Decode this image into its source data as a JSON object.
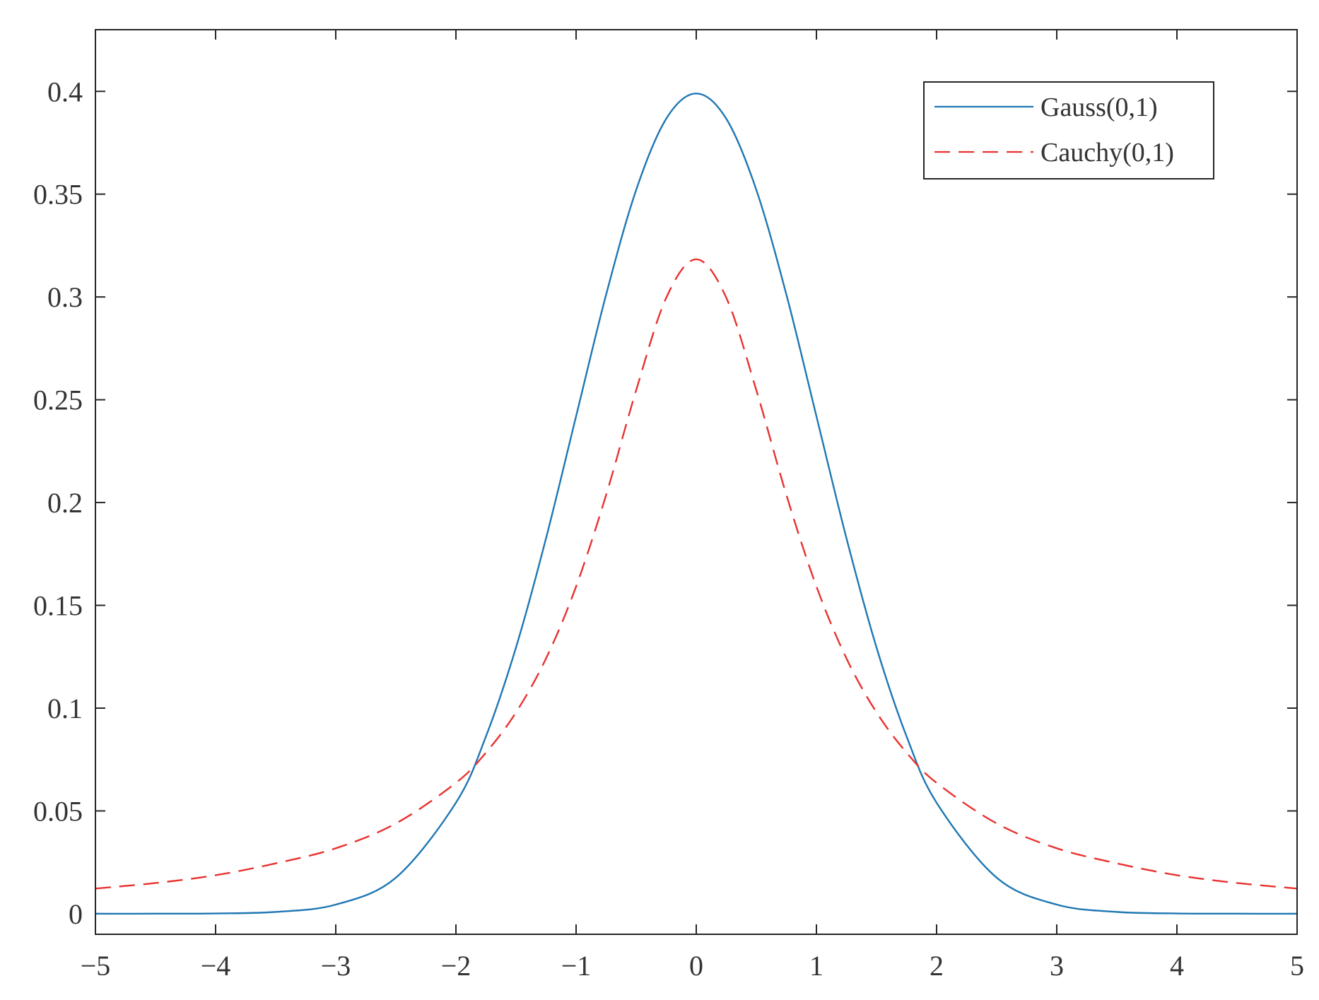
{
  "chart_data": {
    "type": "line",
    "title": "",
    "xlabel": "",
    "ylabel": "",
    "xlim": [
      -5,
      5
    ],
    "ylim": [
      -0.01,
      0.43
    ],
    "grid": false,
    "legend_position": "top-right",
    "x_ticks": [
      {
        "value": -5,
        "label": "−5"
      },
      {
        "value": -4,
        "label": "−4"
      },
      {
        "value": -3,
        "label": "−3"
      },
      {
        "value": -2,
        "label": "−2"
      },
      {
        "value": -1,
        "label": "−1"
      },
      {
        "value": 0,
        "label": "0"
      },
      {
        "value": 1,
        "label": "1"
      },
      {
        "value": 2,
        "label": "2"
      },
      {
        "value": 3,
        "label": "3"
      },
      {
        "value": 4,
        "label": "4"
      },
      {
        "value": 5,
        "label": "5"
      }
    ],
    "y_ticks": [
      {
        "value": 0,
        "label": "0"
      },
      {
        "value": 0.05,
        "label": "0.05"
      },
      {
        "value": 0.1,
        "label": "0.1"
      },
      {
        "value": 0.15,
        "label": "0.15"
      },
      {
        "value": 0.2,
        "label": "0.2"
      },
      {
        "value": 0.25,
        "label": "0.25"
      },
      {
        "value": 0.3,
        "label": "0.3"
      },
      {
        "value": 0.35,
        "label": "0.35"
      },
      {
        "value": 0.4,
        "label": "0.4"
      }
    ],
    "x": [
      -5,
      -4.5,
      -4,
      -3.5,
      -3,
      -2.5,
      -2,
      -1.75,
      -1.5,
      -1.25,
      -1,
      -0.75,
      -0.5,
      -0.25,
      0,
      0.25,
      0.5,
      0.75,
      1,
      1.25,
      1.5,
      1.75,
      2,
      2.5,
      3,
      3.5,
      4,
      4.5,
      5
    ],
    "series": [
      {
        "name": "Gauss(0,1)",
        "color": "#1f77b4",
        "dash": "solid",
        "values": [
          1.5e-06,
          1.6e-05,
          0.000134,
          0.000873,
          0.004432,
          0.017528,
          0.053991,
          0.086277,
          0.129518,
          0.182649,
          0.241971,
          0.301137,
          0.352065,
          0.386668,
          0.398942,
          0.386668,
          0.352065,
          0.301137,
          0.241971,
          0.182649,
          0.129518,
          0.086277,
          0.053991,
          0.017528,
          0.004432,
          0.000873,
          0.000134,
          1.6e-05,
          1.5e-06
        ]
      },
      {
        "name": "Cauchy(0,1)",
        "color": "#e8322f",
        "dash": "dashed",
        "values": [
          0.012243,
          0.014928,
          0.018724,
          0.024485,
          0.031831,
          0.043905,
          0.063662,
          0.07837,
          0.097942,
          0.124175,
          0.159155,
          0.203718,
          0.254648,
          0.299585,
          0.31831,
          0.299585,
          0.254648,
          0.203718,
          0.159155,
          0.124175,
          0.097942,
          0.07837,
          0.063662,
          0.043905,
          0.031831,
          0.024485,
          0.018724,
          0.014928,
          0.012243
        ]
      }
    ]
  }
}
